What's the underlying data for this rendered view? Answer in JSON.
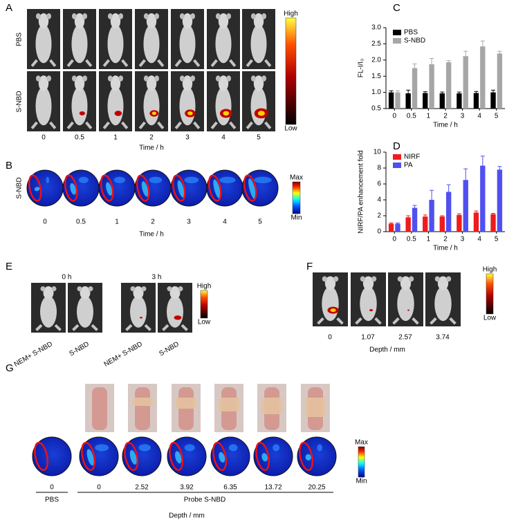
{
  "panel_labels": [
    "A",
    "B",
    "C",
    "D",
    "E",
    "F",
    "G"
  ],
  "panel_a": {
    "rows": [
      "PBS",
      "S-NBD"
    ],
    "times": [
      "0",
      "0.5",
      "1",
      "2",
      "3",
      "4",
      "5"
    ],
    "xlabel": "Time / h",
    "scale": [
      "High",
      "Low"
    ]
  },
  "panel_b": {
    "row": "S-NBD",
    "times": [
      "0",
      "0.5",
      "1",
      "2",
      "3",
      "4",
      "5"
    ],
    "xlabel": "Time / h",
    "scale": [
      "Max",
      "Min"
    ]
  },
  "panel_e": {
    "times": [
      "0 h",
      "3 h"
    ],
    "labels": [
      "NEM+ S-NBD",
      "S-NBD",
      "NEM+ S-NBD",
      "S-NBD"
    ],
    "scale": [
      "High",
      "Low"
    ]
  },
  "panel_f": {
    "depths": [
      "0",
      "1.07",
      "2.57",
      "3.74"
    ],
    "xlabel": "Depth / mm",
    "scale": [
      "High",
      "Low"
    ]
  },
  "panel_g": {
    "depths": [
      "0",
      "0",
      "2.52",
      "3.92",
      "6.35",
      "13.72",
      "20.25"
    ],
    "groups": [
      "PBS",
      "Probe S-NBD"
    ],
    "xlabel": "Depth / mm",
    "scale": [
      "Max",
      "Min"
    ]
  },
  "chart_data": [
    {
      "type": "bar",
      "ylabel": "FL-I/I₀",
      "xlabel": "Time / h",
      "categories": [
        "0",
        "0.5",
        "1",
        "2",
        "3",
        "4",
        "5"
      ],
      "series": [
        {
          "name": "PBS",
          "color": "#000000",
          "values": [
            1.0,
            0.97,
            0.98,
            0.97,
            0.97,
            0.98,
            1.0
          ],
          "errors": [
            0.05,
            0.1,
            0.04,
            0.04,
            0.04,
            0.05,
            0.07
          ]
        },
        {
          "name": "S-NBD",
          "color": "#a6a6a6",
          "values": [
            1.0,
            1.75,
            1.87,
            1.93,
            2.12,
            2.42,
            2.2
          ],
          "errors": [
            0.05,
            0.13,
            0.18,
            0.05,
            0.15,
            0.17,
            0.07
          ]
        }
      ],
      "ylim": [
        0.5,
        3.0
      ],
      "yticks": [
        0.5,
        {
          "value": 1,
          "label": "1.0"
        },
        1.5,
        {
          "value": 2,
          "label": "2.0"
        },
        2.5,
        {
          "value": 3,
          "label": "3.0"
        }
      ],
      "legend": "upper left"
    },
    {
      "type": "bar",
      "ylabel": "NIRF/PA enhancement fold",
      "xlabel": "Time / h",
      "categories": [
        "0",
        "0.5",
        "1",
        "2",
        "3",
        "4",
        "5"
      ],
      "series": [
        {
          "name": "NIRF",
          "color": "#ee1c1c",
          "values": [
            1,
            1.8,
            1.9,
            1.9,
            2.1,
            2.4,
            2.2
          ],
          "errors": [
            0.1,
            0.2,
            0.2,
            0.1,
            0.15,
            0.2,
            0.1
          ]
        },
        {
          "name": "PA",
          "color": "#5050f0",
          "values": [
            1,
            3,
            4,
            5,
            6.5,
            8.3,
            7.8
          ],
          "errors": [
            0.1,
            0.3,
            1.2,
            0.9,
            1.4,
            1.2,
            0.4
          ]
        }
      ],
      "ylim": [
        0,
        10
      ],
      "yticks": [
        0,
        2,
        4,
        6,
        8,
        10
      ],
      "legend": "upper left"
    }
  ]
}
